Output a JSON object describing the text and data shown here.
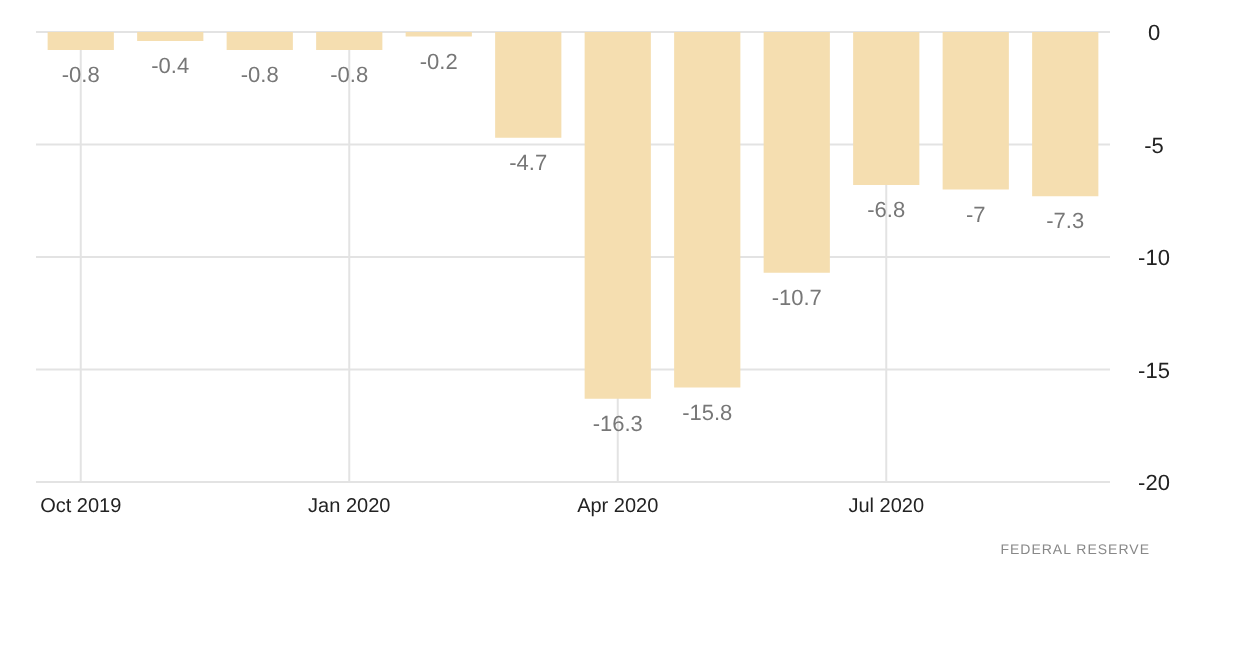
{
  "chart_data": {
    "type": "bar",
    "categories": [
      "Oct 2019",
      null,
      null,
      "Jan 2020",
      null,
      null,
      "Apr 2020",
      null,
      null,
      "Jul 2020",
      null,
      null
    ],
    "values": [
      -0.8,
      -0.4,
      -0.8,
      -0.8,
      -0.2,
      -4.7,
      -16.3,
      -15.8,
      -10.7,
      -6.8,
      -7,
      -7.3
    ],
    "color": "#f5deb0",
    "ylim": [
      -20,
      0
    ],
    "yticks": [
      -20,
      -15,
      -10,
      -5,
      0
    ],
    "grid": true,
    "data_labels": true,
    "annotations": [
      "FEDERAL RESERVE"
    ]
  }
}
